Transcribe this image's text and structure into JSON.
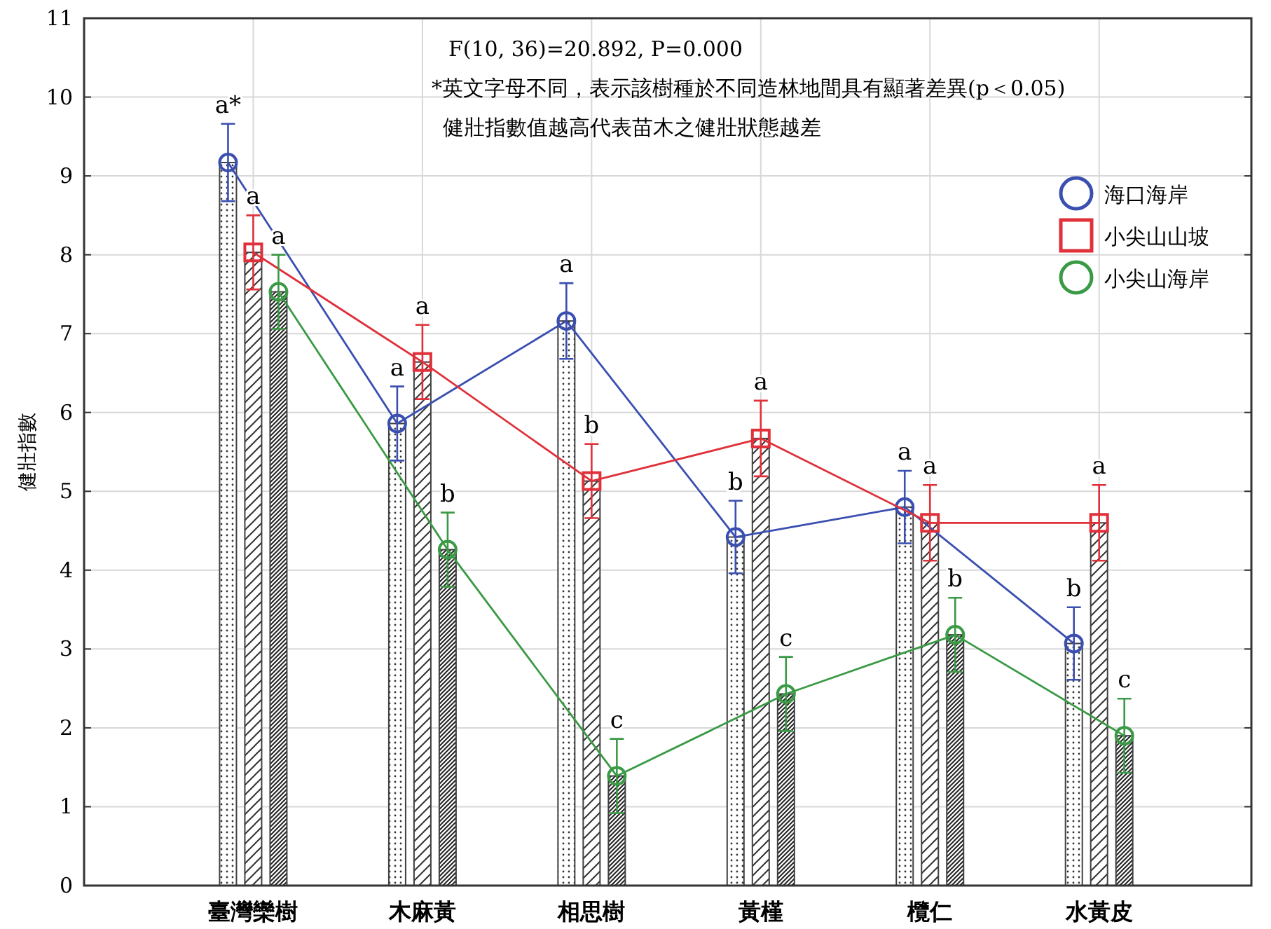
{
  "chart_data": {
    "type": "bar",
    "ylabel": "健壯指數",
    "categories": [
      "臺灣欒樹",
      "木麻黃",
      "相思樹",
      "黃槿",
      "欖仁",
      "水黃皮"
    ],
    "series": [
      {
        "color": "#404040",
        "values": [
          9.17,
          5.86,
          7.16,
          4.42,
          4.8,
          3.07
        ]
      },
      {
        "color": "#404040",
        "values": [
          8.03,
          6.64,
          5.13,
          5.67,
          4.6,
          4.6
        ]
      },
      {
        "color": "#404040",
        "values": [
          7.53,
          4.26,
          1.39,
          2.43,
          3.18,
          1.9
        ]
      },
      {
        "type": "line",
        "name": "海口海岸",
        "color": "#3a4fb0",
        "marker": "circle",
        "values": [
          9.17,
          5.86,
          7.16,
          4.42,
          4.8,
          3.07
        ],
        "errors": [
          0.49,
          0.47,
          0.48,
          0.46,
          0.46,
          0.46
        ],
        "value_labels": [
          "a*",
          "a",
          "a",
          "b",
          "a",
          "b"
        ]
      },
      {
        "type": "line",
        "name": "小尖山山坡",
        "color": "#e0303a",
        "marker": "square",
        "values": [
          8.03,
          6.64,
          5.13,
          5.67,
          4.6,
          4.6
        ],
        "errors": [
          0.47,
          0.47,
          0.47,
          0.48,
          0.48,
          0.48
        ],
        "value_labels": [
          "a",
          "a",
          "b",
          "a",
          "a",
          "a"
        ]
      },
      {
        "type": "line",
        "name": "小尖山海岸",
        "color": "#3a9a45",
        "marker": "circle",
        "values": [
          7.53,
          4.26,
          1.39,
          2.43,
          3.18,
          1.9
        ],
        "errors": [
          0.47,
          0.47,
          0.47,
          0.47,
          0.47,
          0.47
        ],
        "value_labels": [
          "a",
          "b",
          "c",
          "c",
          "b",
          "c"
        ]
      }
    ],
    "ylim": [
      0,
      11
    ],
    "yticks": [
      0,
      1,
      2,
      3,
      4,
      5,
      6,
      7,
      8,
      9,
      10,
      11
    ],
    "grid": true,
    "legend": "top right",
    "annotations": [
      "F(10, 36)=20.892, P=0.000",
      "*英文字母不同，表示該樹種於不同造林地間具有顯著差異(p＜0.05)",
      "健壯指數值越高代表苗木之健壯狀態越差"
    ]
  }
}
